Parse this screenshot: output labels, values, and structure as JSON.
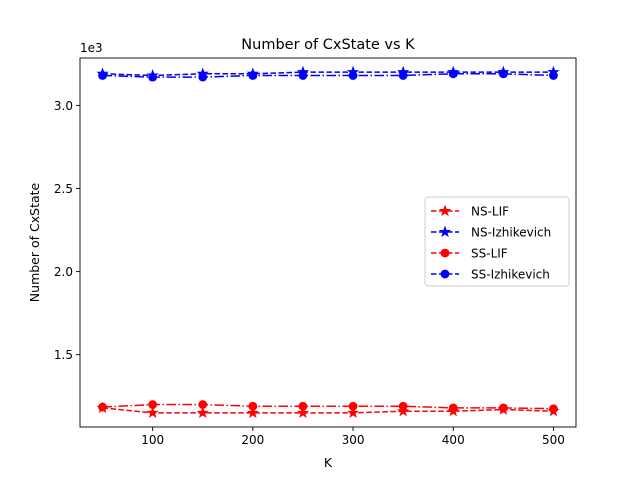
{
  "chart_data": {
    "type": "line",
    "title": "Number of CxState vs K",
    "xlabel": "K",
    "ylabel": "Number of CxState",
    "y_offset_label": "1e3",
    "xlim": [
      27.5,
      522.5
    ],
    "ylim": [
      1.065,
      3.285
    ],
    "x_ticks": [
      100,
      200,
      300,
      400,
      500
    ],
    "x_tick_labels": [
      "100",
      "200",
      "300",
      "400",
      "500"
    ],
    "y_ticks": [
      1.5,
      2.0,
      2.5,
      3.0
    ],
    "y_tick_labels": [
      "1.5",
      "2.0",
      "2.5",
      "3.0"
    ],
    "grid": false,
    "legend_position": "center-right",
    "x": [
      50,
      100,
      150,
      200,
      250,
      300,
      350,
      400,
      450,
      500
    ],
    "series": [
      {
        "name": "NS-LIF",
        "color": "#ff0000",
        "marker": "star",
        "linestyle": "dashed",
        "values": [
          1.18,
          1.15,
          1.15,
          1.15,
          1.15,
          1.15,
          1.16,
          1.16,
          1.17,
          1.16
        ]
      },
      {
        "name": "NS-Izhikevich",
        "color": "#0000ff",
        "marker": "star",
        "linestyle": "dashed",
        "values": [
          3.19,
          3.18,
          3.19,
          3.19,
          3.2,
          3.2,
          3.2,
          3.2,
          3.2,
          3.2
        ]
      },
      {
        "name": "SS-LIF",
        "color": "#ff0000",
        "marker": "circle",
        "linestyle": "dashdot",
        "values": [
          1.185,
          1.2,
          1.2,
          1.19,
          1.19,
          1.19,
          1.19,
          1.18,
          1.18,
          1.175
        ]
      },
      {
        "name": "SS-Izhikevich",
        "color": "#0000ff",
        "marker": "circle",
        "linestyle": "dashdot",
        "values": [
          3.18,
          3.17,
          3.17,
          3.18,
          3.18,
          3.18,
          3.18,
          3.19,
          3.19,
          3.18
        ]
      }
    ]
  }
}
